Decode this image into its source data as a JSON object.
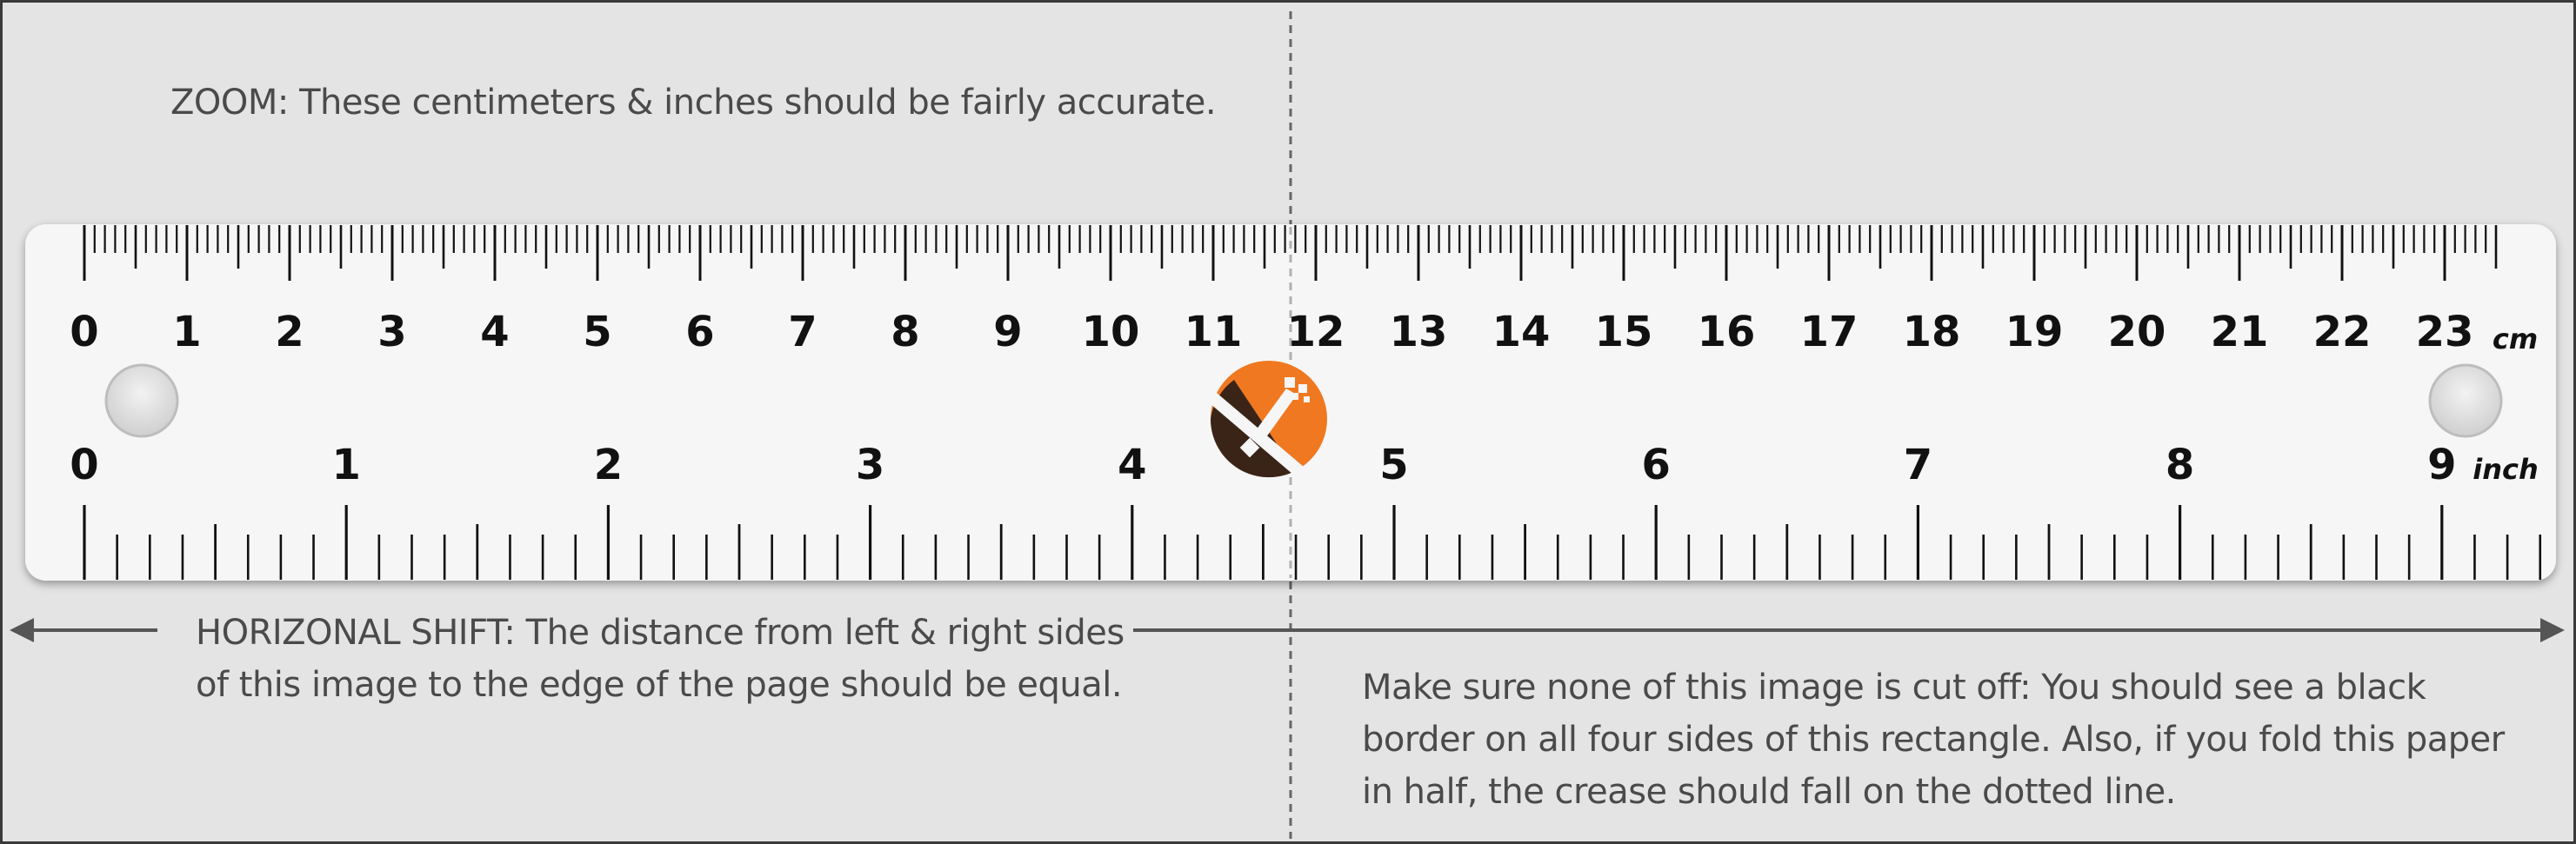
{
  "notes": {
    "zoom": {
      "lead": "ZOOM:",
      "text": " These centimeters & inches should be fairly accurate."
    },
    "shift": {
      "lead": "HORIZONAL SHIFT:",
      "text": " The distance from left & right sides of this image to the edge of the page should be equal."
    },
    "cutoff": {
      "text": "Make sure none of this image is cut off: You should see a black border on all four sides of this rectangle. Also, if you fold this paper in half, the crease should fall on the dotted line."
    }
  },
  "ruler": {
    "cm_labels": [
      "0",
      "1",
      "2",
      "3",
      "4",
      "5",
      "6",
      "7",
      "8",
      "9",
      "10",
      "11",
      "12",
      "13",
      "14",
      "15",
      "16",
      "17",
      "18",
      "19",
      "20",
      "21",
      "22",
      "23"
    ],
    "cm_unit": "cm",
    "inch_labels": [
      "0",
      "1",
      "2",
      "3",
      "4",
      "5",
      "6",
      "7",
      "8",
      "9"
    ],
    "inch_unit": "inch",
    "logo_icon": "x-logo-icon"
  },
  "colors": {
    "page": "#e4e4e4",
    "ruler": "#f6f6f6",
    "ink": "#111111",
    "text": "#4a4a4a",
    "logo_orange": "#f07820",
    "logo_brown": "#3a2418"
  }
}
